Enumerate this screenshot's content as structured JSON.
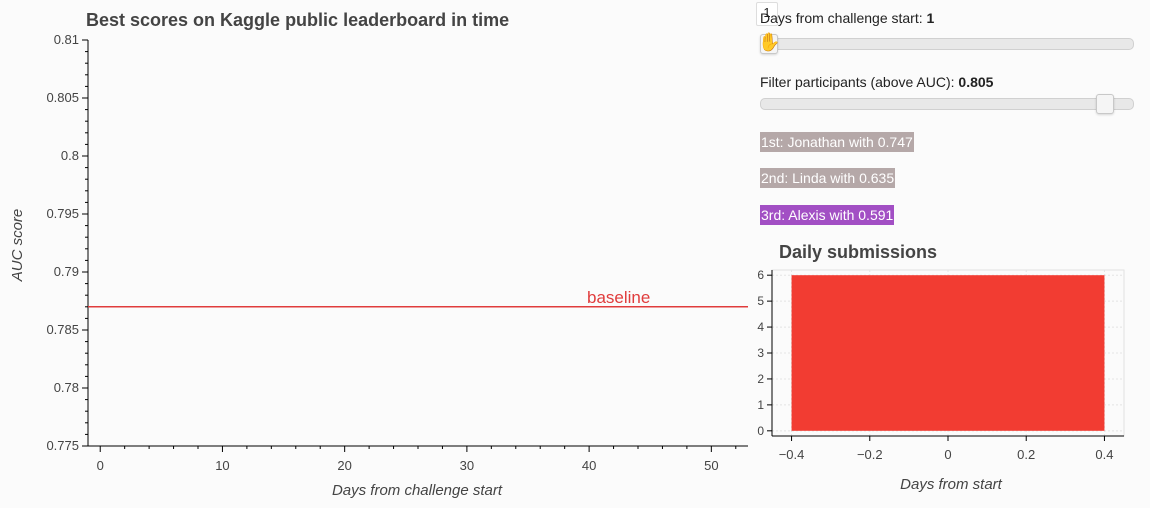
{
  "main_chart": {
    "title": "Best scores on Kaggle public leaderboard in time",
    "xlabel": "Days from challenge start",
    "ylabel": "AUC score",
    "baseline_label": "baseline",
    "baseline_color": "#e03c3c"
  },
  "controls": {
    "days_label": "Days from challenge start: ",
    "days_value": "1",
    "days_tooltip": "1",
    "days_fraction": 0.0,
    "filter_label": "Filter participants (above AUC): ",
    "filter_value": "0.805",
    "filter_fraction": 0.95
  },
  "leaders": [
    {
      "text": "1st: Jonathan with 0.747",
      "color": "#b5a8a8"
    },
    {
      "text": "2nd: Linda with 0.635",
      "color": "#b5a8a8"
    },
    {
      "text": "3rd: Alexis with 0.591",
      "color": "#a24fc4"
    }
  ],
  "side_chart": {
    "title": "Daily submissions",
    "xlabel": "Days from start",
    "bar_color": "#f23c32"
  },
  "chart_data": [
    {
      "type": "line",
      "title": "Best scores on Kaggle public leaderboard in time",
      "xlabel": "Days from challenge start",
      "ylabel": "AUC score",
      "xlim": [
        -1,
        53
      ],
      "ylim": [
        0.775,
        0.81
      ],
      "x_ticks": [
        0,
        10,
        20,
        30,
        40,
        50
      ],
      "x_tick_labels": [
        "0",
        "10",
        "20",
        "30",
        "40",
        "50"
      ],
      "y_ticks": [
        0.775,
        0.78,
        0.785,
        0.79,
        0.795,
        0.8,
        0.805,
        0.81
      ],
      "y_tick_labels": [
        "0.775",
        "0.78",
        "0.785",
        "0.79",
        "0.795",
        "0.8",
        "0.805",
        "0.81"
      ],
      "series": [
        {
          "name": "baseline",
          "x": [
            -1,
            53
          ],
          "y": [
            0.787,
            0.787
          ],
          "color": "#e03c3c"
        }
      ],
      "grid": false
    },
    {
      "type": "bar",
      "title": "Daily submissions",
      "xlabel": "Days from start",
      "ylabel": "",
      "xlim": [
        -0.45,
        0.45
      ],
      "ylim": [
        -0.2,
        6.2
      ],
      "x_ticks": [
        -0.4,
        -0.2,
        0,
        0.2,
        0.4
      ],
      "x_tick_labels": [
        "−0.4",
        "−0.2",
        "0",
        "0.2",
        "0.4"
      ],
      "y_ticks": [
        0,
        1,
        2,
        3,
        4,
        5,
        6
      ],
      "y_tick_labels": [
        "0",
        "1",
        "2",
        "3",
        "4",
        "5",
        "6"
      ],
      "bars": [
        {
          "x0": -0.4,
          "x1": 0.4,
          "value": 6
        }
      ],
      "grid": true
    }
  ]
}
